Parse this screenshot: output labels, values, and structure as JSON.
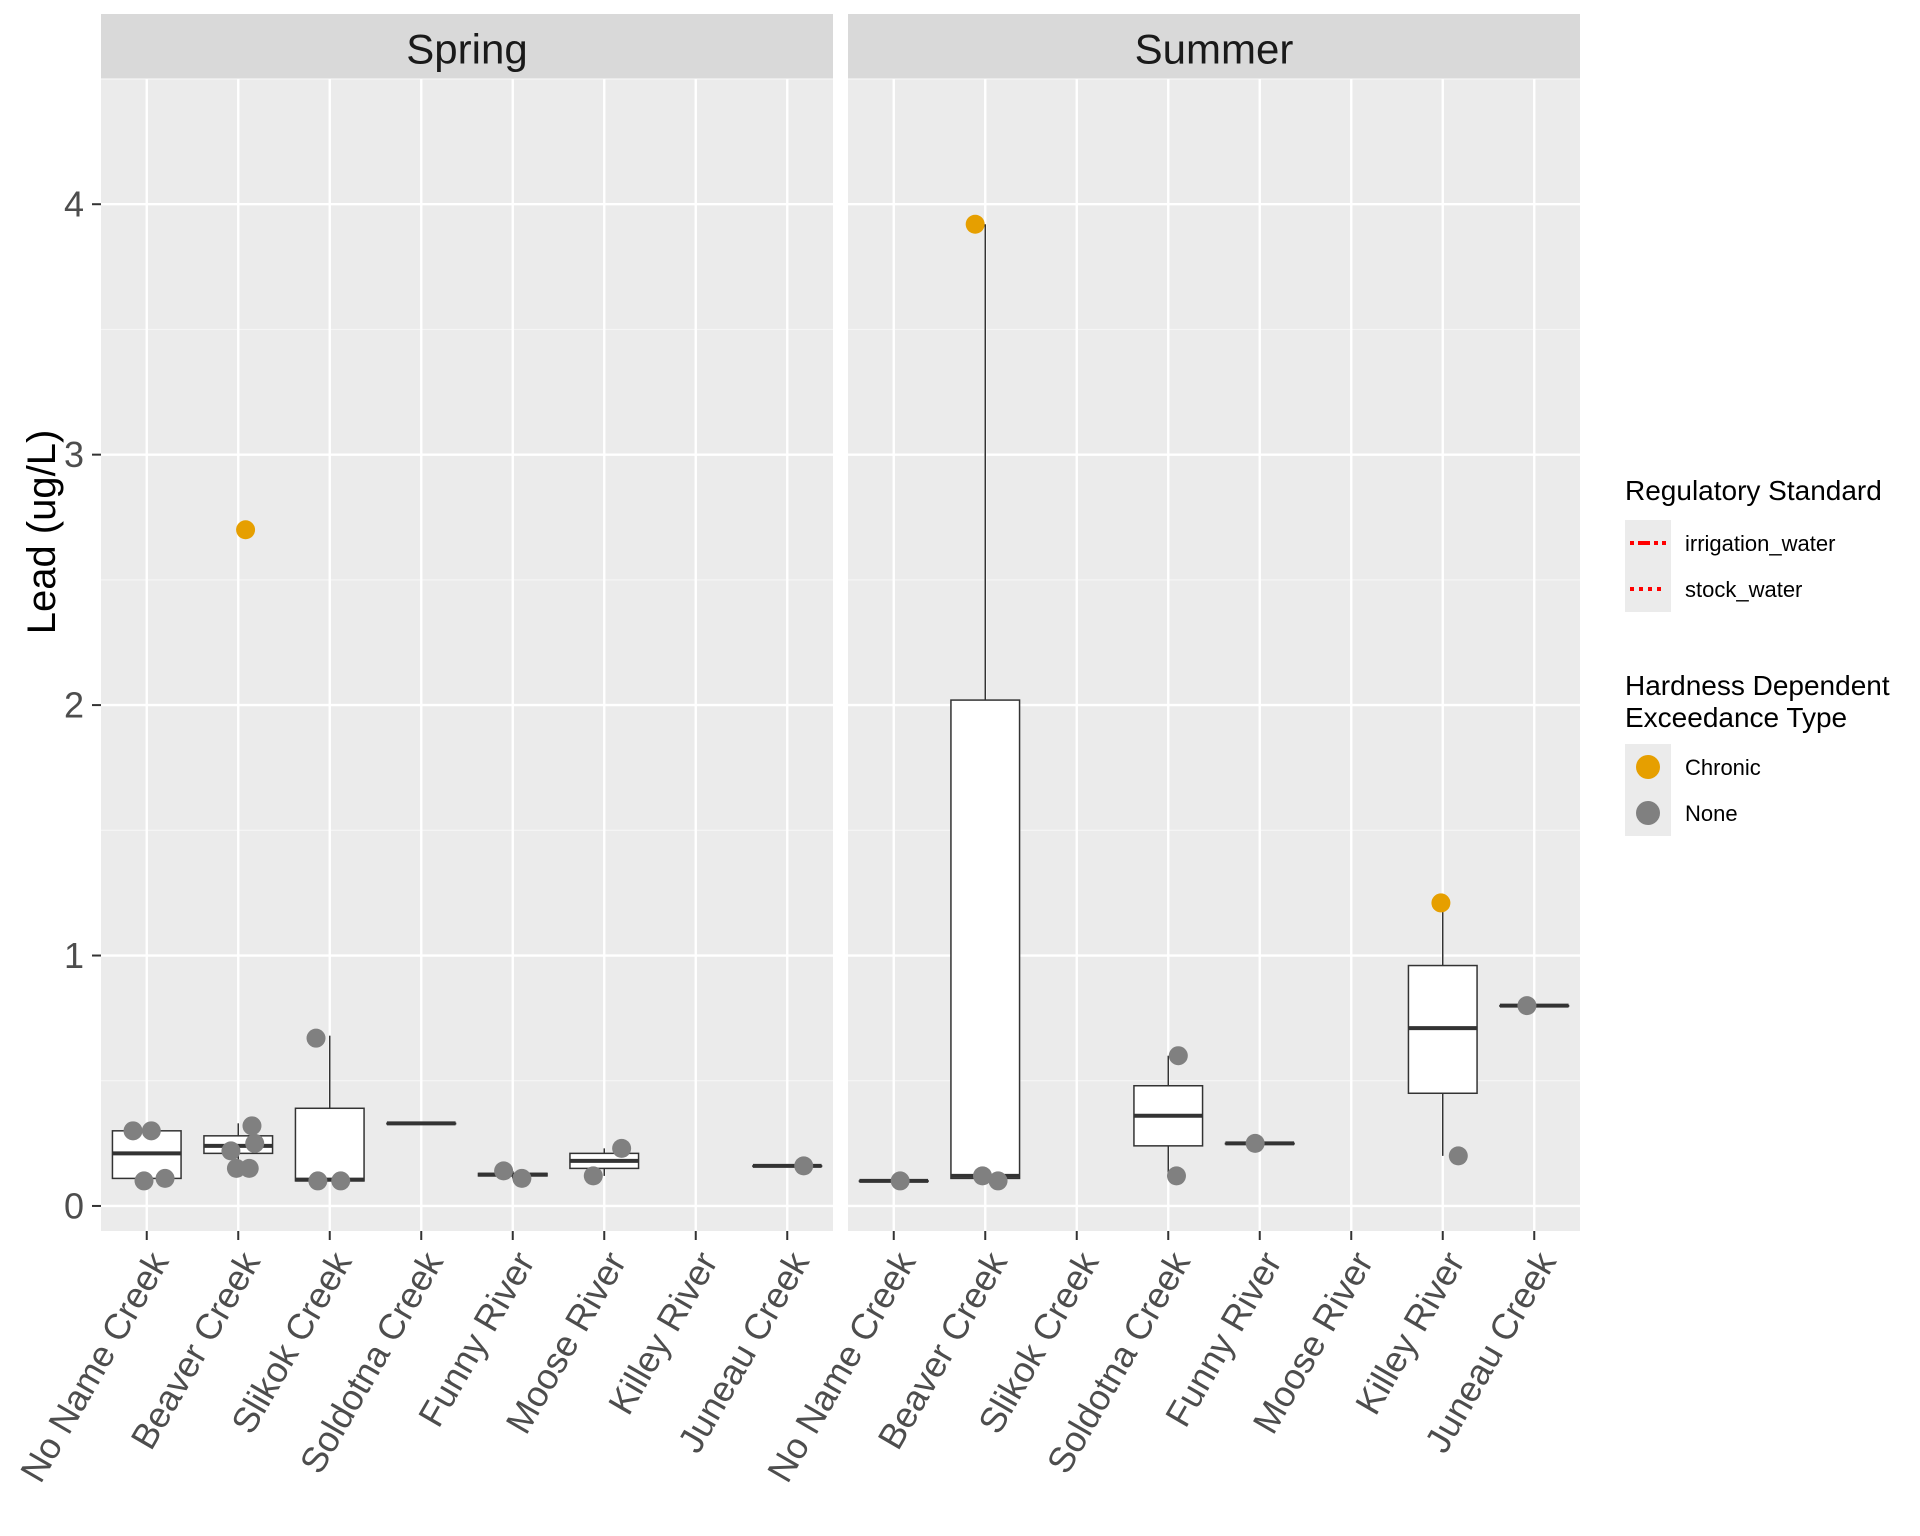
{
  "chart_data": {
    "type": "boxplot",
    "ylabel": "Lead (ug/L)",
    "xlabel": "",
    "ylim": [
      -0.1,
      4.5
    ],
    "yticks": [
      0,
      1,
      2,
      3,
      4
    ],
    "categories": [
      "No Name Creek",
      "Beaver Creek",
      "Slikok Creek",
      "Soldotna Creek",
      "Funny River",
      "Moose River",
      "Killey River",
      "Juneau Creek"
    ],
    "panels": [
      {
        "name": "Spring",
        "boxes": [
          {
            "site": "No Name Creek",
            "q1": 0.11,
            "median": 0.21,
            "q3": 0.3,
            "whisker_low": 0.1,
            "whisker_high": 0.3
          },
          {
            "site": "Beaver Creek",
            "q1": 0.21,
            "median": 0.24,
            "q3": 0.28,
            "whisker_low": 0.15,
            "whisker_high": 0.33
          },
          {
            "site": "Slikok Creek",
            "q1": 0.1,
            "median": 0.105,
            "q3": 0.39,
            "whisker_low": 0.1,
            "whisker_high": 0.68
          },
          {
            "site": "Soldotna Creek",
            "q1": 0.33,
            "median": 0.33,
            "q3": 0.33,
            "whisker_low": 0.33,
            "whisker_high": 0.33
          },
          {
            "site": "Funny River",
            "q1": 0.12,
            "median": 0.125,
            "q3": 0.13,
            "whisker_low": 0.11,
            "whisker_high": 0.14
          },
          {
            "site": "Moose River",
            "q1": 0.15,
            "median": 0.18,
            "q3": 0.21,
            "whisker_low": 0.12,
            "whisker_high": 0.23
          },
          {
            "site": "Juneau Creek",
            "q1": 0.16,
            "median": 0.16,
            "q3": 0.16,
            "whisker_low": 0.16,
            "whisker_high": 0.16
          }
        ],
        "points": [
          {
            "site": "No Name Creek",
            "value": 0.3,
            "type": "None",
            "jitter": -0.15
          },
          {
            "site": "No Name Creek",
            "value": 0.3,
            "type": "None",
            "jitter": 0.05
          },
          {
            "site": "No Name Creek",
            "value": 0.1,
            "type": "None",
            "jitter": -0.03
          },
          {
            "site": "No Name Creek",
            "value": 0.11,
            "type": "None",
            "jitter": 0.2
          },
          {
            "site": "Beaver Creek",
            "value": 2.7,
            "type": "Chronic",
            "jitter": 0.08
          },
          {
            "site": "Beaver Creek",
            "value": 0.32,
            "type": "None",
            "jitter": 0.15
          },
          {
            "site": "Beaver Creek",
            "value": 0.25,
            "type": "None",
            "jitter": 0.18
          },
          {
            "site": "Beaver Creek",
            "value": 0.22,
            "type": "None",
            "jitter": -0.08
          },
          {
            "site": "Beaver Creek",
            "value": 0.15,
            "type": "None",
            "jitter": -0.02
          },
          {
            "site": "Beaver Creek",
            "value": 0.15,
            "type": "None",
            "jitter": 0.12
          },
          {
            "site": "Slikok Creek",
            "value": 0.67,
            "type": "None",
            "jitter": -0.15
          },
          {
            "site": "Slikok Creek",
            "value": 0.1,
            "type": "None",
            "jitter": -0.13
          },
          {
            "site": "Slikok Creek",
            "value": 0.1,
            "type": "None",
            "jitter": 0.12
          },
          {
            "site": "Funny River",
            "value": 0.14,
            "type": "None",
            "jitter": -0.1
          },
          {
            "site": "Funny River",
            "value": 0.11,
            "type": "None",
            "jitter": 0.1
          },
          {
            "site": "Moose River",
            "value": 0.23,
            "type": "None",
            "jitter": 0.19
          },
          {
            "site": "Moose River",
            "value": 0.12,
            "type": "None",
            "jitter": -0.12
          },
          {
            "site": "Juneau Creek",
            "value": 0.16,
            "type": "None",
            "jitter": 0.18
          }
        ]
      },
      {
        "name": "Summer",
        "boxes": [
          {
            "site": "No Name Creek",
            "q1": 0.1,
            "median": 0.1,
            "q3": 0.1,
            "whisker_low": 0.1,
            "whisker_high": 0.1
          },
          {
            "site": "Beaver Creek",
            "q1": 0.11,
            "median": 0.12,
            "q3": 2.02,
            "whisker_low": 0.1,
            "whisker_high": 3.92
          },
          {
            "site": "Soldotna Creek",
            "q1": 0.24,
            "median": 0.36,
            "q3": 0.48,
            "whisker_low": 0.12,
            "whisker_high": 0.6
          },
          {
            "site": "Funny River",
            "q1": 0.25,
            "median": 0.25,
            "q3": 0.25,
            "whisker_low": 0.25,
            "whisker_high": 0.25
          },
          {
            "site": "Killey River",
            "q1": 0.45,
            "median": 0.71,
            "q3": 0.96,
            "whisker_low": 0.2,
            "whisker_high": 1.21
          },
          {
            "site": "Juneau Creek",
            "q1": 0.8,
            "median": 0.8,
            "q3": 0.8,
            "whisker_low": 0.8,
            "whisker_high": 0.8
          }
        ],
        "points": [
          {
            "site": "No Name Creek",
            "value": 0.1,
            "type": "None",
            "jitter": 0.07
          },
          {
            "site": "Beaver Creek",
            "value": 3.92,
            "type": "Chronic",
            "jitter": -0.11
          },
          {
            "site": "Beaver Creek",
            "value": 0.12,
            "type": "None",
            "jitter": -0.03
          },
          {
            "site": "Beaver Creek",
            "value": 0.1,
            "type": "None",
            "jitter": 0.14
          },
          {
            "site": "Soldotna Creek",
            "value": 0.6,
            "type": "None",
            "jitter": 0.11
          },
          {
            "site": "Soldotna Creek",
            "value": 0.12,
            "type": "None",
            "jitter": 0.09
          },
          {
            "site": "Funny River",
            "value": 0.25,
            "type": "None",
            "jitter": -0.05
          },
          {
            "site": "Killey River",
            "value": 1.21,
            "type": "Chronic",
            "jitter": -0.02
          },
          {
            "site": "Killey River",
            "value": 0.2,
            "type": "None",
            "jitter": 0.17
          },
          {
            "site": "Juneau Creek",
            "value": 0.8,
            "type": "None",
            "jitter": -0.08
          }
        ]
      }
    ],
    "legends": [
      {
        "title": "Regulatory Standard",
        "kind": "line",
        "items": [
          {
            "label": "irrigation_water",
            "color": "#ff0000"
          },
          {
            "label": "stock_water",
            "color": "#ff0000"
          }
        ]
      },
      {
        "title": "Hardness Dependent\nExceedance Type",
        "kind": "point",
        "items": [
          {
            "label": "Chronic",
            "color": "#E69F00"
          },
          {
            "label": "None",
            "color": "#808080"
          }
        ]
      }
    ]
  },
  "colors": {
    "panel_bg": "#ebebeb",
    "strip_bg": "#d9d9d9",
    "grid_major": "#ffffff",
    "grid_minor": "#f5f5f5",
    "chronic": "#E69F00",
    "none": "#808080",
    "standard_line": "#ff0000"
  }
}
